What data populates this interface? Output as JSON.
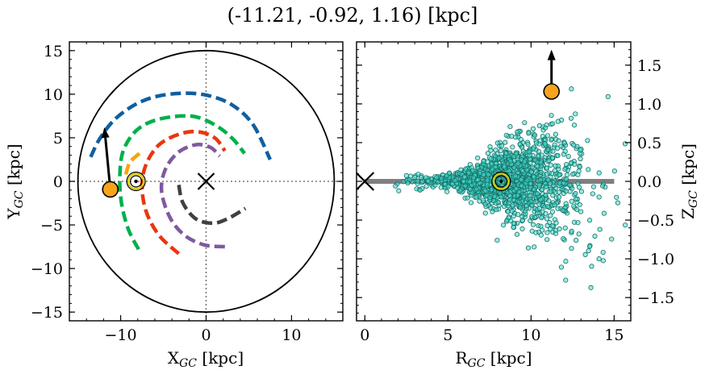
{
  "title": "(-11.21, -0.92, 1.16) [kpc]",
  "chart_data": [
    {
      "type": "line",
      "xlabel": "X",
      "xlabel_sub": "GC",
      "xlabel_unit": " [kpc]",
      "ylabel": "Y",
      "ylabel_sub": "GC",
      "ylabel_unit": " [kpc]",
      "xlim": [
        -16,
        16
      ],
      "ylim": [
        -16,
        16
      ],
      "xticks": [
        -10,
        0,
        10
      ],
      "yticks": [
        -15,
        -10,
        -5,
        0,
        5,
        10,
        15
      ],
      "xtick_labels": [
        "−10",
        "0",
        "10"
      ],
      "ytick_labels": [
        "−15",
        "−10",
        "−5",
        "0",
        "5",
        "10",
        "15"
      ],
      "boundary_circle_radius": 15,
      "galactic_center": [
        0,
        0
      ],
      "sun_position": [
        -8.2,
        0
      ],
      "object_position": [
        -11.21,
        -0.92
      ],
      "velocity_arrow_tip": [
        -11.9,
        6.2
      ],
      "colors": {
        "blue": "#0f5fa0",
        "green": "#00b04a",
        "orange": "#f7a400",
        "red": "#e8370f",
        "purple": "#7e5aa0",
        "dark": "#404040",
        "object": "#f7a41c"
      },
      "series": [
        {
          "color": "blue",
          "points": [
            [
              -13.5,
              2.8
            ],
            [
              -12.5,
              4.8
            ],
            [
              -10.8,
              7.0
            ],
            [
              -8.5,
              8.7
            ],
            [
              -6,
              9.7
            ],
            [
              -3,
              10.1
            ],
            [
              0,
              9.9
            ],
            [
              3,
              8.8
            ],
            [
              5.5,
              6.5
            ],
            [
              7.5,
              2.5
            ]
          ]
        },
        {
          "color": "green",
          "points": [
            [
              -7.9,
              -7.8
            ],
            [
              -9.1,
              -5.5
            ],
            [
              -9.9,
              -2.5
            ],
            [
              -10.1,
              0.5
            ],
            [
              -9.7,
              3.5
            ],
            [
              -8.2,
              5.8
            ],
            [
              -6,
              7.0
            ],
            [
              -3,
              7.5
            ],
            [
              -0.8,
              7.3
            ],
            [
              1.5,
              6.2
            ],
            [
              3.2,
              4.8
            ],
            [
              4.5,
              3.2
            ]
          ]
        },
        {
          "color": "orange",
          "points": [
            [
              -9.4,
              0.8
            ],
            [
              -8.9,
              2.2
            ],
            [
              -7.8,
              3.2
            ]
          ]
        },
        {
          "color": "red",
          "points": [
            [
              -3.2,
              -8.3
            ],
            [
              -5.5,
              -6.2
            ],
            [
              -7.0,
              -3.5
            ],
            [
              -7.5,
              -0.5
            ],
            [
              -7.0,
              2.0
            ],
            [
              -5.5,
              4.2
            ],
            [
              -3.2,
              5.4
            ],
            [
              -1,
              5.7
            ],
            [
              1,
              5.0
            ],
            [
              2.2,
              3.5
            ]
          ]
        },
        {
          "color": "purple",
          "points": [
            [
              2.2,
              -7.5
            ],
            [
              -0.2,
              -7.3
            ],
            [
              -2.5,
              -6.2
            ],
            [
              -4.2,
              -4.2
            ],
            [
              -5.2,
              -1.2
            ],
            [
              -4.8,
              1.3
            ],
            [
              -3.3,
              3.3
            ],
            [
              -1.2,
              4.2
            ],
            [
              0.5,
              3.9
            ],
            [
              1.6,
              2.9
            ]
          ]
        },
        {
          "color": "dark",
          "points": [
            [
              -3.2,
              -0.4
            ],
            [
              -2.7,
              -2.5
            ],
            [
              -1.2,
              -4.3
            ],
            [
              0.8,
              -4.8
            ],
            [
              2.5,
              -4.3
            ],
            [
              4.6,
              -3.1
            ]
          ]
        }
      ]
    },
    {
      "type": "scatter",
      "xlabel": "R",
      "xlabel_sub": "GC",
      "xlabel_unit": " [kpc]",
      "ylabel": "Z",
      "ylabel_sub": "GC",
      "ylabel_unit": " [kpc]",
      "xlim": [
        -0.5,
        16
      ],
      "ylim": [
        -1.8,
        1.8
      ],
      "xticks": [
        0,
        5,
        10,
        15
      ],
      "yticks": [
        -1.5,
        -1.0,
        -0.5,
        0.0,
        0.5,
        1.0,
        1.5
      ],
      "xtick_labels": [
        "0",
        "5",
        "10",
        "15"
      ],
      "ytick_labels": [
        "−1.5",
        "−1.0",
        "−0.5",
        "0.0",
        "0.5",
        "1.0",
        "1.5"
      ],
      "disk_line": {
        "x": [
          0,
          15
        ],
        "y": 0,
        "color": "#808080"
      },
      "galactic_center": [
        0,
        0
      ],
      "sun_position": [
        8.2,
        0
      ],
      "object_position": [
        11.23,
        1.16
      ],
      "velocity_arrow_tip": [
        11.23,
        1.7
      ],
      "point_color": "#40e0d0",
      "point_edge": "#1a6e66",
      "point_count": 1500,
      "point_x_range": [
        1.5,
        16
      ],
      "point_y_range": [
        -1.6,
        1.2
      ]
    }
  ]
}
